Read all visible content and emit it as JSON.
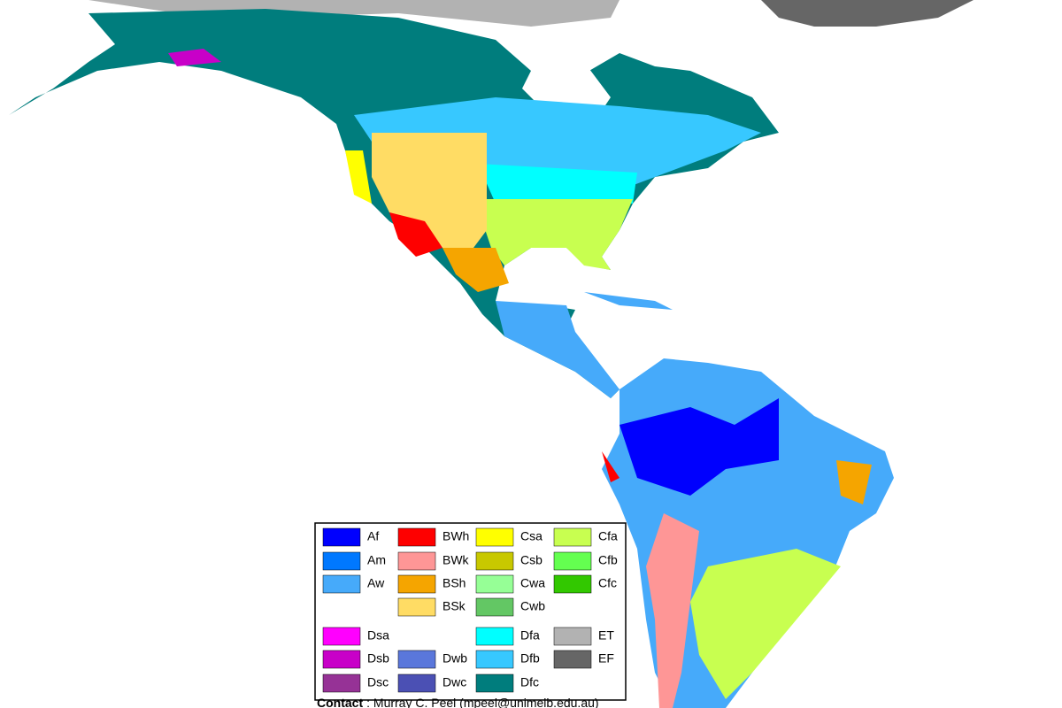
{
  "legend": {
    "items": [
      {
        "code": "Af",
        "color": "#0000fe"
      },
      {
        "code": "Am",
        "color": "#0078ff"
      },
      {
        "code": "Aw",
        "color": "#46aafa"
      },
      {
        "code": "BWh",
        "color": "#fe0000"
      },
      {
        "code": "BWk",
        "color": "#fe9696"
      },
      {
        "code": "BSh",
        "color": "#f5a500"
      },
      {
        "code": "BSk",
        "color": "#ffdc64"
      },
      {
        "code": "Csa",
        "color": "#ffff00"
      },
      {
        "code": "Csb",
        "color": "#c8c800"
      },
      {
        "code": "Cwa",
        "color": "#96ff96"
      },
      {
        "code": "Cwb",
        "color": "#63c764"
      },
      {
        "code": "Cfa",
        "color": "#c8ff50"
      },
      {
        "code": "Cfb",
        "color": "#64ff50"
      },
      {
        "code": "Cfc",
        "color": "#32c800"
      },
      {
        "code": "Dsa",
        "color": "#ff00fe"
      },
      {
        "code": "Dsb",
        "color": "#c800c8"
      },
      {
        "code": "Dsc",
        "color": "#963296"
      },
      {
        "code": "Dwb",
        "color": "#5a77db"
      },
      {
        "code": "Dwc",
        "color": "#4b50b4"
      },
      {
        "code": "Dfa",
        "color": "#00ffff"
      },
      {
        "code": "Dfb",
        "color": "#37c8ff"
      },
      {
        "code": "Dfc",
        "color": "#007d7d"
      },
      {
        "code": "ET",
        "color": "#b2b2b2"
      },
      {
        "code": "EF",
        "color": "#666666"
      }
    ]
  },
  "contact": {
    "label": "Contact",
    "text": ": Murray C. Peel (mpeel@unimelb.edu.au)"
  }
}
